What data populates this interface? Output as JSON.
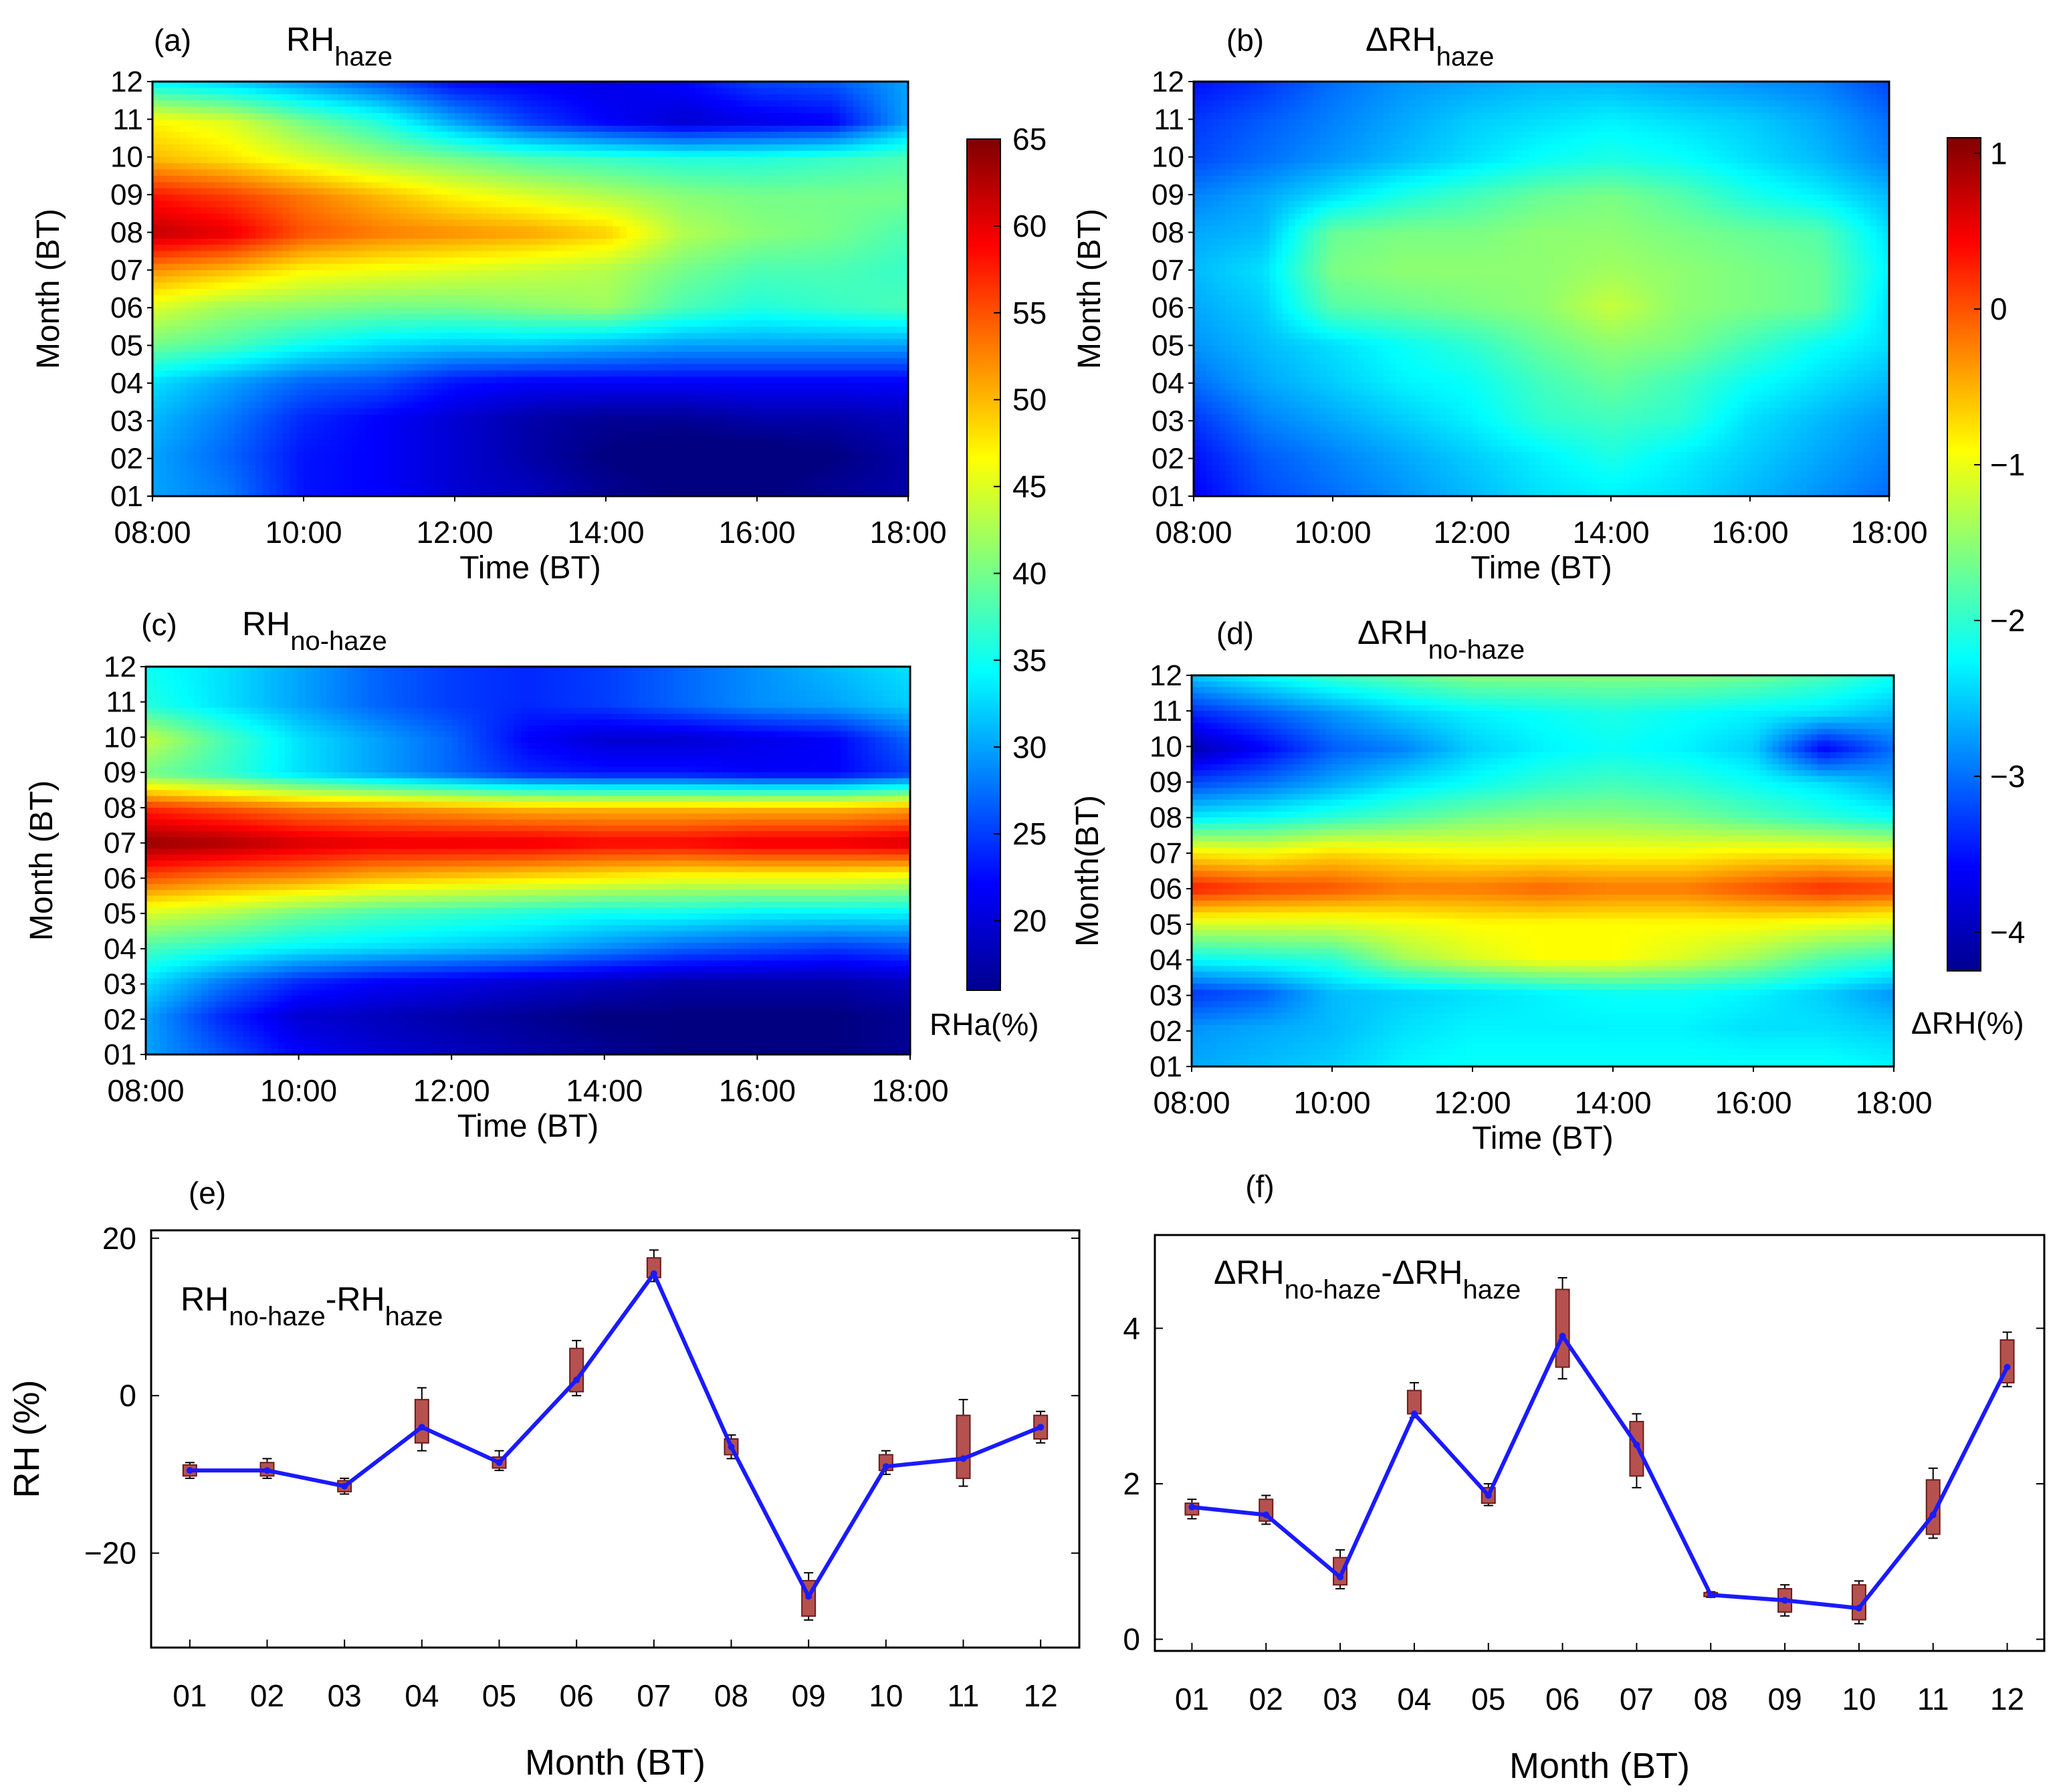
{
  "chart_data": [
    {
      "id": "a",
      "type": "heatmap",
      "panel_label": "(a)",
      "title": {
        "main": "RH",
        "sub": "haze"
      },
      "xlabel": "Time (BT)",
      "ylabel": "Month (BT)",
      "x_ticks": [
        "08:00",
        "10:00",
        "12:00",
        "14:00",
        "16:00",
        "18:00"
      ],
      "y_ticks": [
        "01",
        "02",
        "03",
        "04",
        "05",
        "06",
        "07",
        "08",
        "09",
        "10",
        "11",
        "12"
      ],
      "colorbar": "rha",
      "x_hours": [
        8,
        9,
        10,
        11,
        12,
        13,
        14,
        15,
        16,
        17,
        18
      ],
      "z": [
        [
          30,
          28,
          23,
          22,
          20,
          19,
          17,
          16,
          16,
          17,
          18
        ],
        [
          30,
          27,
          23,
          22,
          20,
          18,
          16,
          15,
          15,
          16,
          18
        ],
        [
          31,
          28,
          24,
          22,
          20,
          18,
          17,
          17,
          18,
          18,
          19
        ],
        [
          33,
          30,
          27,
          26,
          23,
          22,
          22,
          22,
          22,
          22,
          22
        ],
        [
          40,
          38,
          35,
          33,
          32,
          32,
          31,
          30,
          30,
          30,
          30
        ],
        [
          45,
          42,
          41,
          40,
          40,
          41,
          42,
          38,
          36,
          37,
          38
        ],
        [
          52,
          50,
          47,
          46,
          45,
          44,
          43,
          40,
          38,
          38,
          37
        ],
        [
          62,
          60,
          55,
          53,
          52,
          51,
          49,
          43,
          41,
          40,
          38
        ],
        [
          58,
          56,
          53,
          50,
          47,
          45,
          43,
          41,
          40,
          40,
          40
        ],
        [
          50,
          48,
          45,
          42,
          40,
          38,
          37,
          36,
          36,
          37,
          38
        ],
        [
          47,
          45,
          40,
          36,
          30,
          25,
          22,
          20,
          21,
          22,
          30
        ],
        [
          35,
          33,
          30,
          27,
          23,
          22,
          21,
          22,
          25,
          26,
          30
        ]
      ]
    },
    {
      "id": "b",
      "type": "heatmap",
      "panel_label": "(b)",
      "title": {
        "main": "ΔRH",
        "sub": "haze"
      },
      "xlabel": "Time (BT)",
      "ylabel": "Month (BT)",
      "x_ticks": [
        "08:00",
        "10:00",
        "12:00",
        "14:00",
        "16:00",
        "18:00"
      ],
      "y_ticks": [
        "01",
        "02",
        "03",
        "04",
        "05",
        "06",
        "07",
        "08",
        "09",
        "10",
        "11",
        "12"
      ],
      "colorbar": "drh",
      "x_hours": [
        8,
        9,
        10,
        11,
        12,
        13,
        14,
        15,
        16,
        17,
        18
      ],
      "z": [
        [
          -3.6,
          -3.2,
          -3.0,
          -2.8,
          -2.6,
          -2.4,
          -2.3,
          -2.4,
          -2.6,
          -2.8,
          -3.0
        ],
        [
          -3.5,
          -3.1,
          -2.9,
          -2.7,
          -2.5,
          -2.3,
          -2.1,
          -2.3,
          -2.5,
          -2.7,
          -2.9
        ],
        [
          -3.3,
          -2.9,
          -2.7,
          -2.5,
          -2.3,
          -2.0,
          -1.9,
          -2.0,
          -2.4,
          -2.6,
          -2.8
        ],
        [
          -3.0,
          -2.7,
          -2.5,
          -2.3,
          -2.2,
          -1.9,
          -1.7,
          -1.9,
          -2.2,
          -2.4,
          -2.6
        ],
        [
          -2.8,
          -2.6,
          -2.4,
          -2.2,
          -2.0,
          -1.7,
          -1.5,
          -1.6,
          -1.9,
          -2.2,
          -2.4
        ],
        [
          -2.7,
          -2.5,
          -1.8,
          -1.7,
          -1.6,
          -1.5,
          -1.2,
          -1.5,
          -1.6,
          -1.7,
          -2.4
        ],
        [
          -2.6,
          -2.4,
          -1.6,
          -1.5,
          -1.5,
          -1.5,
          -1.4,
          -1.5,
          -1.6,
          -1.7,
          -2.3
        ],
        [
          -2.7,
          -2.6,
          -1.7,
          -1.6,
          -1.6,
          -1.5,
          -1.5,
          -1.6,
          -1.7,
          -1.8,
          -2.4
        ],
        [
          -2.9,
          -2.7,
          -2.4,
          -2.1,
          -1.9,
          -1.7,
          -1.6,
          -1.8,
          -2.1,
          -2.3,
          -2.6
        ],
        [
          -3.2,
          -3.0,
          -2.8,
          -2.6,
          -2.4,
          -2.2,
          -2.1,
          -2.2,
          -2.4,
          -2.6,
          -2.9
        ],
        [
          -3.3,
          -3.1,
          -2.9,
          -2.7,
          -2.5,
          -2.4,
          -2.3,
          -2.4,
          -2.5,
          -2.7,
          -3.0
        ],
        [
          -3.5,
          -3.3,
          -3.0,
          -2.8,
          -2.7,
          -2.6,
          -2.6,
          -2.7,
          -2.8,
          -2.9,
          -3.2
        ]
      ]
    },
    {
      "id": "c",
      "type": "heatmap",
      "panel_label": "(c)",
      "title": {
        "main": "RH",
        "sub": "no-haze"
      },
      "xlabel": "Time (BT)",
      "ylabel": "Month (BT)",
      "x_ticks": [
        "08:00",
        "10:00",
        "12:00",
        "14:00",
        "16:00",
        "18:00"
      ],
      "y_ticks": [
        "01",
        "02",
        "03",
        "04",
        "05",
        "06",
        "07",
        "08",
        "09",
        "10",
        "11",
        "12"
      ],
      "colorbar": "rha",
      "x_hours": [
        8,
        9,
        10,
        11,
        12,
        13,
        14,
        15,
        16,
        17,
        18
      ],
      "z": [
        [
          30,
          26,
          22,
          20,
          19,
          18,
          17,
          16,
          16,
          16,
          17
        ],
        [
          30,
          24,
          20,
          19,
          18,
          17,
          16,
          16,
          16,
          16,
          17
        ],
        [
          33,
          28,
          24,
          22,
          21,
          20,
          19,
          18,
          18,
          18,
          19
        ],
        [
          38,
          36,
          34,
          33,
          32,
          31,
          29,
          27,
          26,
          25,
          26
        ],
        [
          45,
          43,
          40,
          38,
          37,
          36,
          35,
          35,
          34,
          34,
          34
        ],
        [
          55,
          53,
          52,
          50,
          49,
          48,
          47,
          46,
          46,
          46,
          45
        ],
        [
          64,
          63,
          61,
          60,
          60,
          60,
          59,
          59,
          60,
          60,
          61
        ],
        [
          57,
          55,
          53,
          52,
          51,
          50,
          50,
          50,
          50,
          50,
          51
        ],
        [
          40,
          37,
          33,
          30,
          27,
          24,
          23,
          23,
          22,
          22,
          25
        ],
        [
          44,
          38,
          33,
          30,
          27,
          22,
          20,
          20,
          21,
          22,
          27
        ],
        [
          36,
          33,
          30,
          27,
          25,
          24,
          25,
          27,
          29,
          30,
          32
        ],
        [
          35,
          33,
          30,
          27,
          25,
          24,
          25,
          27,
          29,
          31,
          33
        ]
      ]
    },
    {
      "id": "d",
      "type": "heatmap",
      "panel_label": "(d)",
      "title": {
        "main": "ΔRH",
        "sub": "no-haze"
      },
      "xlabel": "Time (BT)",
      "ylabel": "Month(BT)",
      "x_ticks": [
        "08:00",
        "10:00",
        "12:00",
        "14:00",
        "16:00",
        "18:00"
      ],
      "y_ticks": [
        "01",
        "02",
        "03",
        "04",
        "05",
        "06",
        "07",
        "08",
        "09",
        "10",
        "11",
        "12"
      ],
      "colorbar": "drh",
      "x_hours": [
        8,
        9,
        10,
        11,
        12,
        13,
        14,
        15,
        16,
        17,
        18
      ],
      "z": [
        [
          -2.7,
          -2.6,
          -2.5,
          -2.3,
          -2.2,
          -2.2,
          -2.2,
          -2.2,
          -2.2,
          -2.2,
          -2.3
        ],
        [
          -2.8,
          -2.7,
          -2.6,
          -2.4,
          -2.3,
          -2.3,
          -2.3,
          -2.3,
          -2.4,
          -2.4,
          -2.5
        ],
        [
          -3.3,
          -3.1,
          -2.6,
          -2.5,
          -2.4,
          -2.3,
          -2.2,
          -2.2,
          -2.3,
          -2.5,
          -2.8
        ],
        [
          -2.2,
          -2.1,
          -2.0,
          -1.4,
          -1.1,
          -0.9,
          -0.9,
          -1.1,
          -1.4,
          -1.8,
          -2.0
        ],
        [
          -1.1,
          -1.1,
          -1.1,
          -1.0,
          -0.9,
          -0.9,
          -0.9,
          -0.9,
          -0.9,
          -1.0,
          -1.1
        ],
        [
          0.3,
          0.1,
          0.0,
          -0.2,
          -0.2,
          -0.1,
          -0.2,
          -0.2,
          0.0,
          0.2,
          0.1
        ],
        [
          -0.8,
          -0.9,
          -0.7,
          -0.8,
          -0.9,
          -0.9,
          -0.9,
          -0.9,
          -0.8,
          -0.8,
          -0.9
        ],
        [
          -2.3,
          -2.2,
          -2.0,
          -1.8,
          -1.6,
          -1.5,
          -1.5,
          -1.6,
          -1.8,
          -2.0,
          -2.2
        ],
        [
          -3.2,
          -3.0,
          -2.7,
          -2.4,
          -2.2,
          -2.0,
          -1.9,
          -2.0,
          -2.2,
          -2.4,
          -2.7
        ],
        [
          -4.0,
          -3.6,
          -3.1,
          -2.9,
          -2.5,
          -2.3,
          -2.2,
          -2.3,
          -2.5,
          -3.6,
          -3.0
        ],
        [
          -3.4,
          -3.1,
          -2.8,
          -2.5,
          -2.3,
          -2.2,
          -2.1,
          -2.2,
          -2.3,
          -2.4,
          -2.6
        ],
        [
          -2.6,
          -2.3,
          -2.0,
          -1.8,
          -1.6,
          -1.6,
          -1.6,
          -1.6,
          -1.7,
          -1.9,
          -2.2
        ]
      ]
    },
    {
      "id": "e",
      "type": "line",
      "panel_label": "(e)",
      "annotation": {
        "parts": [
          {
            "text": "RH",
            "sub": false
          },
          {
            "text": "no-haze",
            "sub": true
          },
          {
            "text": "-RH",
            "sub": false
          },
          {
            "text": "haze",
            "sub": true
          }
        ]
      },
      "xlabel": "Month (BT)",
      "ylabel": "RH (%)",
      "categories": [
        "01",
        "02",
        "03",
        "04",
        "05",
        "06",
        "07",
        "08",
        "09",
        "10",
        "11",
        "12"
      ],
      "ylim": [
        -32,
        21
      ],
      "y_ticks": [
        {
          "value": -20,
          "label": "−20"
        },
        {
          "value": 0,
          "label": "0"
        },
        {
          "value": 20,
          "label": "20"
        }
      ],
      "series": [
        {
          "values": [
            -9.5,
            -9.5,
            -11.5,
            -4,
            -8.5,
            2,
            15.5,
            -6.5,
            -25.5,
            -9,
            -8,
            -4
          ]
        }
      ],
      "boxes": [
        {
          "low": -10.5,
          "q1": -10.2,
          "q3": -8.8,
          "high": -8.5
        },
        {
          "low": -10.5,
          "q1": -10.2,
          "q3": -8.5,
          "high": -8
        },
        {
          "low": -12.5,
          "q1": -12.2,
          "q3": -10.8,
          "high": -10.5
        },
        {
          "low": -7,
          "q1": -6,
          "q3": -0.5,
          "high": 1
        },
        {
          "low": -9.5,
          "q1": -9.2,
          "q3": -7.8,
          "high": -7
        },
        {
          "low": 0,
          "q1": 0.5,
          "q3": 6,
          "high": 7
        },
        {
          "low": 14.5,
          "q1": 15,
          "q3": 17.5,
          "high": 18.5
        },
        {
          "low": -8,
          "q1": -7.5,
          "q3": -5.5,
          "high": -5
        },
        {
          "low": -28.5,
          "q1": -28,
          "q3": -23.5,
          "high": -22.5
        },
        {
          "low": -10,
          "q1": -9.5,
          "q3": -7.5,
          "high": -7
        },
        {
          "low": -11.5,
          "q1": -10.5,
          "q3": -2.5,
          "high": -0.5
        },
        {
          "low": -6,
          "q1": -5.5,
          "q3": -2.5,
          "high": -2
        }
      ]
    },
    {
      "id": "f",
      "type": "line",
      "panel_label": "(f)",
      "annotation": {
        "parts": [
          {
            "text": "ΔRH",
            "sub": false
          },
          {
            "text": "no-haze",
            "sub": true
          },
          {
            "text": "-ΔRH",
            "sub": false
          },
          {
            "text": "haze",
            "sub": true
          }
        ]
      },
      "xlabel": "Month (BT)",
      "ylabel": "",
      "categories": [
        "01",
        "02",
        "03",
        "04",
        "05",
        "06",
        "07",
        "08",
        "09",
        "10",
        "11",
        "12"
      ],
      "ylim": [
        -0.15,
        5.2
      ],
      "y_ticks": [
        {
          "value": 0,
          "label": "0"
        },
        {
          "value": 2,
          "label": "2"
        },
        {
          "value": 4,
          "label": "4"
        }
      ],
      "series": [
        {
          "values": [
            1.7,
            1.6,
            0.8,
            2.9,
            1.85,
            3.9,
            2.5,
            0.57,
            0.5,
            0.4,
            1.6,
            3.5
          ]
        }
      ],
      "boxes": [
        {
          "low": 1.55,
          "q1": 1.6,
          "q3": 1.75,
          "high": 1.8
        },
        {
          "low": 1.48,
          "q1": 1.52,
          "q3": 1.8,
          "high": 1.85
        },
        {
          "low": 0.65,
          "q1": 0.7,
          "q3": 1.05,
          "high": 1.15
        },
        {
          "low": 2.85,
          "q1": 2.9,
          "q3": 3.2,
          "high": 3.3
        },
        {
          "low": 1.72,
          "q1": 1.75,
          "q3": 1.95,
          "high": 2.0
        },
        {
          "low": 3.35,
          "q1": 3.5,
          "q3": 4.5,
          "high": 4.65
        },
        {
          "low": 1.95,
          "q1": 2.1,
          "q3": 2.8,
          "high": 2.9
        },
        {
          "low": 0.54,
          "q1": 0.55,
          "q3": 0.6,
          "high": 0.61
        },
        {
          "low": 0.3,
          "q1": 0.35,
          "q3": 0.65,
          "high": 0.7
        },
        {
          "low": 0.2,
          "q1": 0.25,
          "q3": 0.7,
          "high": 0.75
        },
        {
          "low": 1.3,
          "q1": 1.35,
          "q3": 2.05,
          "high": 2.2
        },
        {
          "low": 3.25,
          "q1": 3.3,
          "q3": 3.85,
          "high": 3.95
        }
      ]
    }
  ],
  "colorbars": {
    "rha": {
      "min": 16,
      "max": 65,
      "ticks": [
        20,
        25,
        30,
        35,
        40,
        45,
        50,
        55,
        60,
        65
      ],
      "label": "RHa(%)"
    },
    "drh": {
      "min": -4.25,
      "max": 1.1,
      "ticks": [
        {
          "value": 1,
          "label": "1"
        },
        {
          "value": 0,
          "label": "0"
        },
        {
          "value": -1,
          "label": "−1"
        },
        {
          "value": -2,
          "label": "−2"
        },
        {
          "value": -3,
          "label": "−3"
        },
        {
          "value": -4,
          "label": "−4"
        }
      ],
      "label": "ΔRH(%)"
    }
  },
  "style": {
    "line_color": "#1a1aff",
    "box_fill": "#b5524f",
    "box_stroke": "#6b1c1c"
  }
}
